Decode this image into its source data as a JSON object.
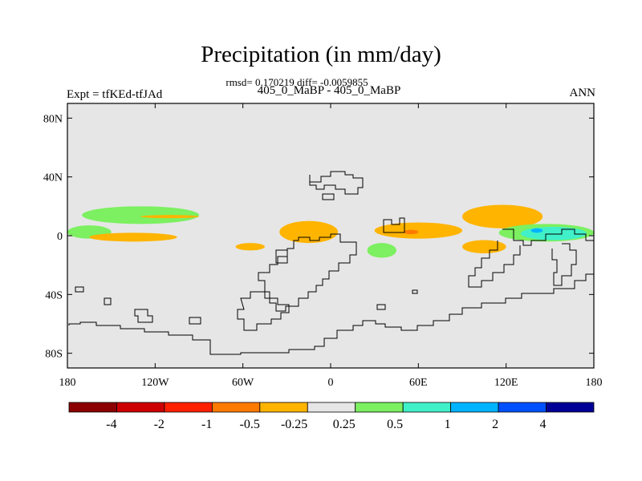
{
  "header": {
    "title": "Precipitation (in mm/day)",
    "subtitle": "rmsd= 0.170219 diff= -0.0059855",
    "center_label": "405_0_MaBP - 405_0_MaBP",
    "left_label": "Expt = tfKEd-tfJAd",
    "right_label": "ANN"
  },
  "chart_data": {
    "type": "heatmap",
    "title": "Precipitation (in mm/day)",
    "xlabel": "",
    "ylabel": "",
    "xlim": [
      -180,
      180
    ],
    "ylim": [
      -90,
      90
    ],
    "x_ticks": [
      {
        "value": -180,
        "label": "180"
      },
      {
        "value": -120,
        "label": "120W"
      },
      {
        "value": -60,
        "label": "60W"
      },
      {
        "value": 0,
        "label": "0"
      },
      {
        "value": 60,
        "label": "60E"
      },
      {
        "value": 120,
        "label": "120E"
      },
      {
        "value": 180,
        "label": "180"
      }
    ],
    "y_ticks": [
      {
        "value": 80,
        "label": "80N"
      },
      {
        "value": 40,
        "label": "40N"
      },
      {
        "value": 0,
        "label": "0"
      },
      {
        "value": -40,
        "label": "40S"
      },
      {
        "value": -80,
        "label": "80S"
      }
    ],
    "background_color": "#e6e6e6",
    "colorbar": {
      "colors": [
        "#8b0000",
        "#cc0000",
        "#ff2000",
        "#ff7a00",
        "#ffb400",
        "#e6e6e6",
        "#7cf060",
        "#40f0c8",
        "#00b4ff",
        "#0050ff",
        "#000096"
      ],
      "labels": [
        "-4",
        "-2",
        "-1",
        "-0.5",
        "-0.25",
        "0.25",
        "0.5",
        "1",
        "2",
        "4"
      ]
    },
    "anomaly_regions": [
      {
        "lon": [
          -180,
          -150
        ],
        "lat": [
          -2,
          7
        ],
        "level": "0.25 to 0.5",
        "color": "#7cf060"
      },
      {
        "lon": [
          -170,
          -90
        ],
        "lat": [
          8,
          20
        ],
        "level": "0.25 to 0.5",
        "color": "#7cf060"
      },
      {
        "lon": [
          -165,
          -105
        ],
        "lat": [
          -4,
          2
        ],
        "level": "-0.25 to -0.5",
        "color": "#ffb400"
      },
      {
        "lon": [
          -130,
          -90
        ],
        "lat": [
          12,
          14
        ],
        "level": "-0.25 to -0.5",
        "color": "#ffb400"
      },
      {
        "lon": [
          -65,
          -45
        ],
        "lat": [
          -10,
          -5
        ],
        "level": "-0.25 to -0.5",
        "color": "#ffb400"
      },
      {
        "lon": [
          -35,
          5
        ],
        "lat": [
          -5,
          10
        ],
        "level": "-0.25 to -0.5",
        "color": "#ffb400"
      },
      {
        "lon": [
          30,
          90
        ],
        "lat": [
          -2,
          9
        ],
        "level": "-0.25 to -0.5",
        "color": "#ffb400"
      },
      {
        "lon": [
          50,
          60
        ],
        "lat": [
          1,
          4
        ],
        "level": "-0.5 to -1",
        "color": "#ff7a00"
      },
      {
        "lon": [
          25,
          45
        ],
        "lat": [
          -15,
          -5
        ],
        "level": "0.25 to 0.5",
        "color": "#7cf060"
      },
      {
        "lon": [
          90,
          145
        ],
        "lat": [
          5,
          21
        ],
        "level": "-0.25 to -0.5",
        "color": "#ffb400"
      },
      {
        "lon": [
          90,
          120
        ],
        "lat": [
          -12,
          -3
        ],
        "level": "-0.25 to -0.5",
        "color": "#ffb400"
      },
      {
        "lon": [
          115,
          180
        ],
        "lat": [
          -4,
          8
        ],
        "level": "0.25 to 0.5",
        "color": "#7cf060"
      },
      {
        "lon": [
          130,
          175
        ],
        "lat": [
          -3,
          6
        ],
        "level": "0.5 to 1",
        "color": "#40f0c8"
      },
      {
        "lon": [
          137,
          145
        ],
        "lat": [
          2,
          5
        ],
        "level": "1 to 2",
        "color": "#00b4ff"
      }
    ],
    "grid": false
  }
}
